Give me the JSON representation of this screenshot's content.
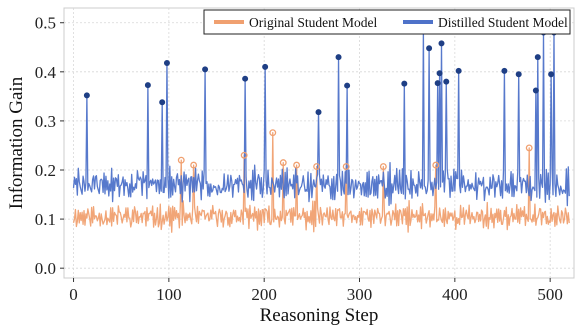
{
  "chart_data": {
    "type": "line",
    "title": "",
    "xlabel": "Reasoning Step",
    "ylabel": "Information Gain",
    "xlim": [
      -10,
      525
    ],
    "ylim": [
      -0.02,
      0.53
    ],
    "xticks": [
      0,
      100,
      200,
      300,
      400,
      500
    ],
    "yticks": [
      0.0,
      0.1,
      0.2,
      0.3,
      0.4,
      0.5
    ],
    "grid": true,
    "legend_position": "top",
    "colors": {
      "original": "#F0A070",
      "distilled": "#4E72C9"
    },
    "series": [
      {
        "name": "Original Student Model",
        "color": "#F0A070",
        "x_range": [
          0,
          520
        ],
        "baseline": 0.105,
        "noise": 0.035,
        "seed": 11,
        "peaks": [
          {
            "x": 113,
            "y": 0.22
          },
          {
            "x": 126,
            "y": 0.21
          },
          {
            "x": 179,
            "y": 0.23
          },
          {
            "x": 209,
            "y": 0.276
          },
          {
            "x": 220,
            "y": 0.215
          },
          {
            "x": 234,
            "y": 0.21
          },
          {
            "x": 255,
            "y": 0.207
          },
          {
            "x": 286,
            "y": 0.207
          },
          {
            "x": 325,
            "y": 0.207
          },
          {
            "x": 380,
            "y": 0.21
          },
          {
            "x": 478,
            "y": 0.245
          }
        ]
      },
      {
        "name": "Distilled Student Model",
        "color": "#4E72C9",
        "x_range": [
          0,
          520
        ],
        "baseline": 0.17,
        "noise": 0.045,
        "seed": 29,
        "peaks": [
          {
            "x": 14,
            "y": 0.352
          },
          {
            "x": 78,
            "y": 0.373
          },
          {
            "x": 93,
            "y": 0.338
          },
          {
            "x": 98,
            "y": 0.418
          },
          {
            "x": 138,
            "y": 0.405
          },
          {
            "x": 180,
            "y": 0.386
          },
          {
            "x": 201,
            "y": 0.41
          },
          {
            "x": 257,
            "y": 0.318
          },
          {
            "x": 278,
            "y": 0.43
          },
          {
            "x": 287,
            "y": 0.372
          },
          {
            "x": 347,
            "y": 0.376
          },
          {
            "x": 367,
            "y": 0.486
          },
          {
            "x": 373,
            "y": 0.448
          },
          {
            "x": 382,
            "y": 0.377
          },
          {
            "x": 384,
            "y": 0.397
          },
          {
            "x": 386,
            "y": 0.458
          },
          {
            "x": 391,
            "y": 0.38
          },
          {
            "x": 404,
            "y": 0.402
          },
          {
            "x": 452,
            "y": 0.402
          },
          {
            "x": 467,
            "y": 0.395
          },
          {
            "x": 485,
            "y": 0.362
          },
          {
            "x": 487,
            "y": 0.43
          },
          {
            "x": 493,
            "y": 0.48
          },
          {
            "x": 501,
            "y": 0.395
          },
          {
            "x": 504,
            "y": 0.48
          }
        ]
      }
    ]
  }
}
